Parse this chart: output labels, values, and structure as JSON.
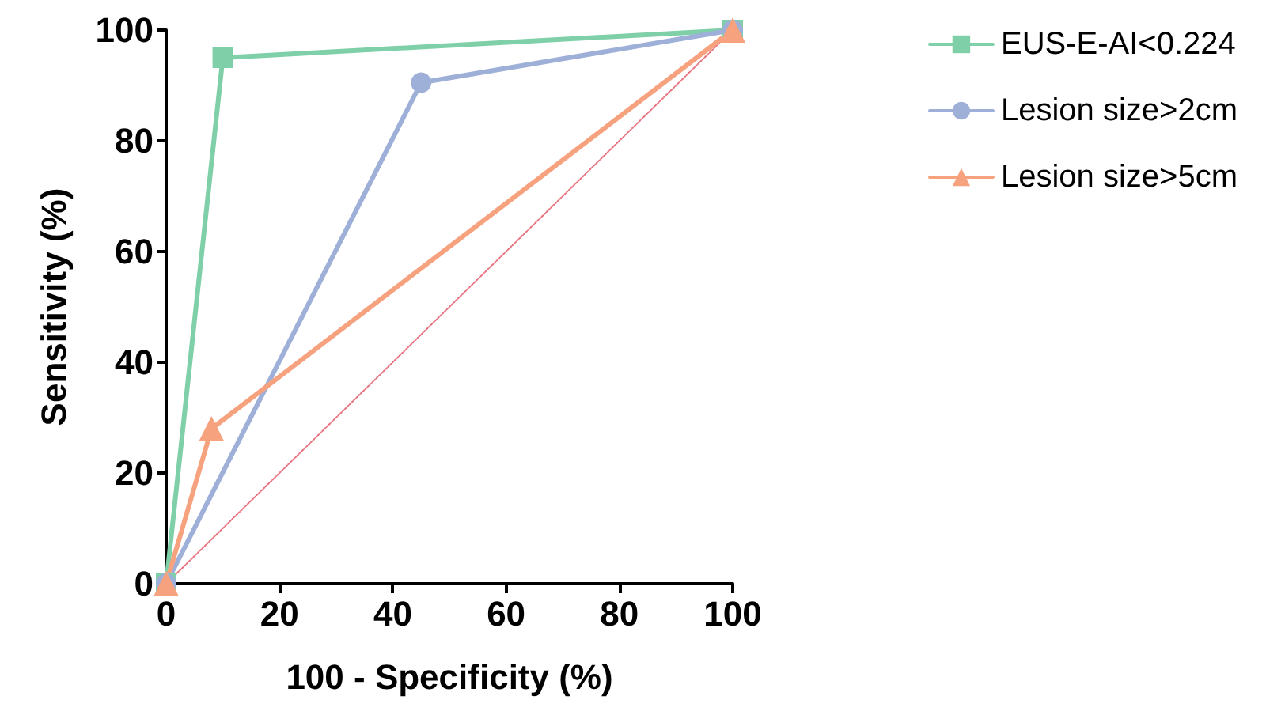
{
  "chart_data": {
    "type": "line",
    "xlabel": "100 - Specificity (%)",
    "ylabel": "Sensitivity (%)",
    "xlim": [
      0,
      100
    ],
    "xticks": [
      0,
      20,
      40,
      60,
      80,
      100
    ],
    "ylim": [
      0,
      100
    ],
    "yticks": [
      0,
      20,
      40,
      60,
      80,
      100
    ],
    "grid": false,
    "legend": "right",
    "series": [
      {
        "name": "EUS-E-AI<0.224",
        "color": "#7fcfa9",
        "marker": "square",
        "x": [
          0,
          10,
          100
        ],
        "values": [
          0,
          95,
          100
        ]
      },
      {
        "name": "Lesion size>2cm",
        "color": "#9fb0d8",
        "marker": "circle",
        "x": [
          0,
          45,
          100
        ],
        "values": [
          0,
          90.5,
          100
        ]
      },
      {
        "name": "Lesion size>5cm",
        "color": "#f7a27e",
        "marker": "triangle",
        "x": [
          0,
          8,
          100
        ],
        "values": [
          0,
          28,
          100
        ]
      },
      {
        "color": "#e8727e",
        "marker": "none",
        "line_style": "dotted",
        "x": [
          0,
          100
        ],
        "values": [
          0,
          100
        ]
      }
    ]
  }
}
